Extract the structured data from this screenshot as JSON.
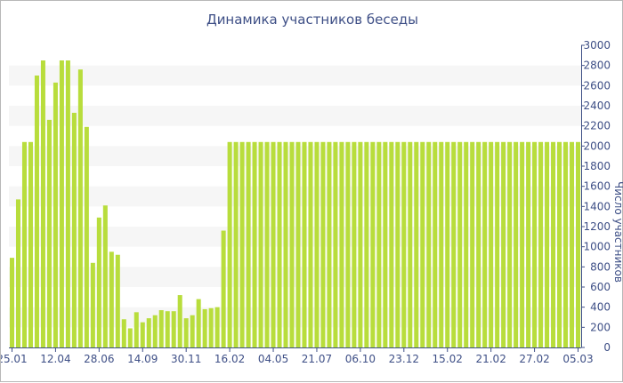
{
  "chart_data": {
    "type": "bar",
    "title": "Динамика участников беседы",
    "xlabel": "",
    "ylabel": "Число участников",
    "ylim": [
      0,
      3000
    ],
    "yticks": [
      0,
      200,
      400,
      600,
      800,
      1000,
      1200,
      1400,
      1600,
      1800,
      2000,
      2200,
      2400,
      2600,
      2800,
      3000
    ],
    "xtick_labels": [
      {
        "index": 0,
        "label": "25.01"
      },
      {
        "index": 7,
        "label": "12.04"
      },
      {
        "index": 14,
        "label": "28.06"
      },
      {
        "index": 21,
        "label": "14.09"
      },
      {
        "index": 28,
        "label": "30.11"
      },
      {
        "index": 35,
        "label": "16.02"
      },
      {
        "index": 42,
        "label": "04.05"
      },
      {
        "index": 49,
        "label": "21.07"
      },
      {
        "index": 56,
        "label": "06.10"
      },
      {
        "index": 63,
        "label": "23.12"
      },
      {
        "index": 70,
        "label": "15.02"
      },
      {
        "index": 77,
        "label": "21.02"
      },
      {
        "index": 84,
        "label": "27.02"
      },
      {
        "index": 91,
        "label": "05.03"
      }
    ],
    "values": [
      890,
      1470,
      2040,
      2040,
      2700,
      2850,
      2260,
      2630,
      2850,
      2850,
      2330,
      2760,
      2190,
      840,
      1290,
      1410,
      950,
      920,
      280,
      190,
      350,
      250,
      290,
      320,
      370,
      360,
      360,
      520,
      290,
      320,
      480,
      380,
      390,
      400,
      1160,
      2040,
      2040,
      2040,
      2040,
      2040,
      2040,
      2040,
      2040,
      2040,
      2040,
      2040,
      2040,
      2040,
      2040,
      2040,
      2040,
      2040,
      2040,
      2040,
      2040,
      2040,
      2040,
      2040,
      2040,
      2040,
      2040,
      2040,
      2040,
      2040,
      2040,
      2040,
      2040,
      2040,
      2040,
      2040,
      2040,
      2040,
      2040,
      2040,
      2040,
      2040,
      2040,
      2040,
      2040,
      2040,
      2040,
      2040,
      2040,
      2040,
      2040,
      2040,
      2040,
      2040,
      2040,
      2040,
      2040,
      2040
    ],
    "bar_color": "#b8dd3c",
    "band_color": "#f6f6f6",
    "axis_color": "#3e4f86",
    "grid": true,
    "legend": "none"
  }
}
